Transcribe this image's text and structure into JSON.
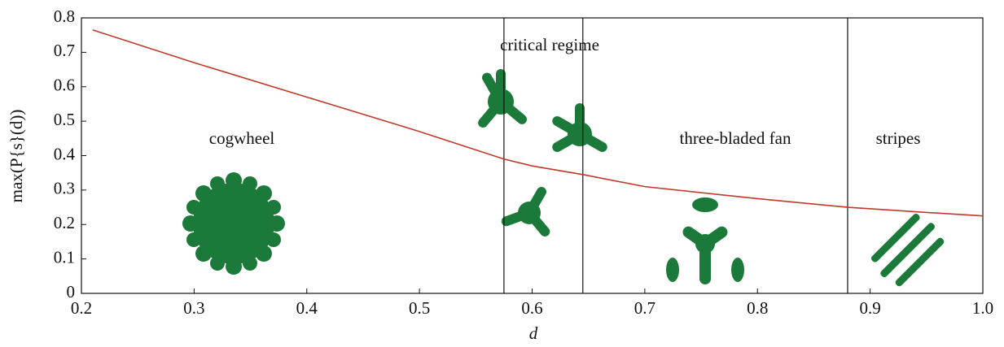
{
  "chart_data": {
    "type": "line",
    "x_label": "d",
    "y_label": "max(P{s}(d))",
    "annotations": [
      "cogwheel",
      "critical regime",
      "three-bladed fan",
      "stripes"
    ],
    "x": [
      0.21,
      0.3,
      0.4,
      0.5,
      0.575,
      0.6,
      0.645,
      0.7,
      0.8,
      0.88,
      0.95,
      1.0
    ],
    "series": [
      {
        "color": "#c0392b",
        "values": [
          0.765,
          0.67,
          0.57,
          0.47,
          0.39,
          0.37,
          0.345,
          0.31,
          0.275,
          0.25,
          0.235,
          0.225
        ]
      }
    ],
    "vlines": [
      0.575,
      0.645,
      0.88
    ],
    "xlim": [
      0.2,
      1.0
    ],
    "ylim": [
      0,
      0.8
    ],
    "xticks": [
      0.2,
      0.3,
      0.4,
      0.5,
      0.6,
      0.7,
      0.8,
      0.9,
      {
        "value": 1,
        "label": "1.0"
      }
    ],
    "yticks": [
      0,
      0.1,
      0.2,
      0.3,
      0.4,
      0.5,
      0.6,
      0.7,
      0.8
    ],
    "grid": false
  }
}
